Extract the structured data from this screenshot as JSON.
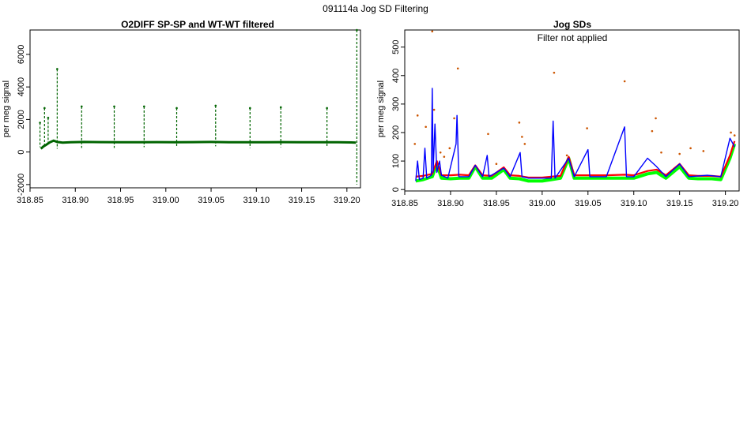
{
  "figure": {
    "main_title": "091114a   Jog SD Filtering"
  },
  "colors": {
    "left_series": "#006400",
    "right_blue": "#0000ff",
    "right_red": "#ff0000",
    "right_green": "#00ff00",
    "right_outliers": "#cc5500"
  },
  "chart_data": [
    {
      "type": "scatter",
      "title": "O2DIFF SP-SP and WT-WT filtered",
      "xlabel": "",
      "ylabel": "per meg signal",
      "xlim": [
        318.85,
        319.215
      ],
      "ylim": [
        -2200,
        7500
      ],
      "x_ticks": [
        "318.85",
        "318.90",
        "318.95",
        "319.00",
        "319.05",
        "319.10",
        "319.15",
        "319.20"
      ],
      "y_ticks": [
        "-2000",
        "0",
        "2000",
        "4000",
        "6000"
      ],
      "grid": false,
      "series": [
        {
          "baseline_points": [
            [
              318.862,
              200
            ],
            [
              318.865,
              350
            ],
            [
              318.868,
              450
            ],
            [
              318.872,
              600
            ],
            [
              318.876,
              700
            ],
            [
              318.88,
              620
            ],
            [
              318.886,
              580
            ],
            [
              318.895,
              600
            ],
            [
              318.91,
              620
            ],
            [
              318.93,
              610
            ],
            [
              318.95,
              600
            ],
            [
              318.97,
              605
            ],
            [
              318.99,
              610
            ],
            [
              319.01,
              605
            ],
            [
              319.03,
              610
            ],
            [
              319.05,
              620
            ],
            [
              319.07,
              605
            ],
            [
              319.09,
              600
            ],
            [
              319.11,
              605
            ],
            [
              319.13,
              610
            ],
            [
              319.15,
              600
            ],
            [
              319.17,
              605
            ],
            [
              319.19,
              600
            ],
            [
              319.205,
              590
            ],
            [
              319.21,
              580
            ]
          ],
          "spikes": [
            {
              "x": 318.861,
              "high": 1800,
              "low": 300
            },
            {
              "x": 318.866,
              "high": 2700,
              "low": 300
            },
            {
              "x": 318.87,
              "high": 2100,
              "low": 400
            },
            {
              "x": 318.88,
              "high": 5100,
              "low": 200
            },
            {
              "x": 318.907,
              "high": 2800,
              "low": 250
            },
            {
              "x": 318.943,
              "high": 2800,
              "low": 250
            },
            {
              "x": 318.976,
              "high": 2800,
              "low": 300
            },
            {
              "x": 319.012,
              "high": 2700,
              "low": 300
            },
            {
              "x": 319.055,
              "high": 2850,
              "low": 350
            },
            {
              "x": 319.093,
              "high": 2700,
              "low": 250
            },
            {
              "x": 319.127,
              "high": 2750,
              "low": 300
            },
            {
              "x": 319.178,
              "high": 2700,
              "low": 300
            },
            {
              "x": 319.211,
              "high": 7500,
              "low": -2000
            }
          ]
        }
      ]
    },
    {
      "type": "line",
      "title": "Jog SDs",
      "annotation": "Filter not applied",
      "xlabel": "",
      "ylabel": "per meg signal",
      "xlim": [
        318.85,
        319.215
      ],
      "ylim": [
        -5,
        560
      ],
      "x_ticks": [
        "318.85",
        "318.90",
        "318.95",
        "319.00",
        "319.05",
        "319.10",
        "319.15",
        "319.20"
      ],
      "y_ticks": [
        "0",
        "100",
        "200",
        "300",
        "400",
        "500"
      ],
      "grid": false,
      "series": [
        {
          "color_key": "right_green",
          "points": [
            [
              318.862,
              30
            ],
            [
              318.87,
              35
            ],
            [
              318.88,
              45
            ],
            [
              318.885,
              90
            ],
            [
              318.89,
              40
            ],
            [
              318.9,
              38
            ],
            [
              318.91,
              40
            ],
            [
              318.92,
              40
            ],
            [
              318.927,
              80
            ],
            [
              318.935,
              40
            ],
            [
              318.945,
              40
            ],
            [
              318.958,
              70
            ],
            [
              318.965,
              40
            ],
            [
              318.975,
              38
            ],
            [
              318.985,
              30
            ],
            [
              319.0,
              30
            ],
            [
              319.01,
              35
            ],
            [
              319.02,
              40
            ],
            [
              319.029,
              110
            ],
            [
              319.035,
              40
            ],
            [
              319.05,
              40
            ],
            [
              319.07,
              40
            ],
            [
              319.09,
              40
            ],
            [
              319.1,
              40
            ],
            [
              319.115,
              55
            ],
            [
              319.125,
              60
            ],
            [
              319.135,
              40
            ],
            [
              319.15,
              80
            ],
            [
              319.16,
              40
            ],
            [
              319.17,
              38
            ],
            [
              319.185,
              38
            ],
            [
              319.195,
              35
            ],
            [
              319.205,
              110
            ],
            [
              319.21,
              160
            ]
          ]
        },
        {
          "color_key": "right_red",
          "points": [
            [
              318.862,
              45
            ],
            [
              318.87,
              48
            ],
            [
              318.88,
              55
            ],
            [
              318.885,
              100
            ],
            [
              318.89,
              50
            ],
            [
              318.9,
              50
            ],
            [
              318.91,
              52
            ],
            [
              318.92,
              50
            ],
            [
              318.927,
              85
            ],
            [
              318.935,
              50
            ],
            [
              318.945,
              48
            ],
            [
              318.958,
              78
            ],
            [
              318.965,
              50
            ],
            [
              318.975,
              48
            ],
            [
              318.985,
              42
            ],
            [
              319.0,
              42
            ],
            [
              319.01,
              45
            ],
            [
              319.02,
              48
            ],
            [
              319.029,
              115
            ],
            [
              319.035,
              50
            ],
            [
              319.05,
              50
            ],
            [
              319.07,
              50
            ],
            [
              319.09,
              52
            ],
            [
              319.1,
              50
            ],
            [
              319.115,
              65
            ],
            [
              319.125,
              70
            ],
            [
              319.135,
              50
            ],
            [
              319.15,
              90
            ],
            [
              319.16,
              50
            ],
            [
              319.17,
              48
            ],
            [
              319.185,
              48
            ],
            [
              319.195,
              45
            ],
            [
              319.205,
              120
            ],
            [
              319.21,
              170
            ]
          ]
        },
        {
          "color_key": "right_blue",
          "points": [
            [
              318.862,
              30
            ],
            [
              318.864,
              100
            ],
            [
              318.866,
              35
            ],
            [
              318.87,
              40
            ],
            [
              318.872,
              145
            ],
            [
              318.874,
              40
            ],
            [
              318.879,
              50
            ],
            [
              318.88,
              355
            ],
            [
              318.881,
              60
            ],
            [
              318.883,
              230
            ],
            [
              318.885,
              60
            ],
            [
              318.888,
              100
            ],
            [
              318.89,
              50
            ],
            [
              318.897,
              40
            ],
            [
              318.906,
              160
            ],
            [
              318.907,
              260
            ],
            [
              318.909,
              45
            ],
            [
              318.92,
              45
            ],
            [
              318.927,
              85
            ],
            [
              318.935,
              45
            ],
            [
              318.94,
              120
            ],
            [
              318.942,
              45
            ],
            [
              318.958,
              75
            ],
            [
              318.965,
              45
            ],
            [
              318.976,
              130
            ],
            [
              318.978,
              45
            ],
            [
              318.985,
              40
            ],
            [
              319.0,
              40
            ],
            [
              319.01,
              40
            ],
            [
              319.012,
              240
            ],
            [
              319.014,
              40
            ],
            [
              319.029,
              110
            ],
            [
              319.035,
              45
            ],
            [
              319.05,
              140
            ],
            [
              319.052,
              45
            ],
            [
              319.07,
              45
            ],
            [
              319.09,
              220
            ],
            [
              319.092,
              45
            ],
            [
              319.1,
              45
            ],
            [
              319.115,
              110
            ],
            [
              319.125,
              80
            ],
            [
              319.135,
              45
            ],
            [
              319.15,
              90
            ],
            [
              319.16,
              45
            ],
            [
              319.18,
              50
            ],
            [
              319.195,
              45
            ],
            [
              319.205,
              180
            ],
            [
              319.21,
              150
            ]
          ]
        }
      ],
      "outliers": [
        [
          318.861,
          160
        ],
        [
          318.864,
          260
        ],
        [
          318.873,
          220
        ],
        [
          318.88,
          555
        ],
        [
          318.882,
          280
        ],
        [
          318.889,
          130
        ],
        [
          318.893,
          115
        ],
        [
          318.899,
          145
        ],
        [
          318.904,
          250
        ],
        [
          318.908,
          425
        ],
        [
          318.941,
          195
        ],
        [
          318.95,
          90
        ],
        [
          318.975,
          235
        ],
        [
          318.978,
          185
        ],
        [
          318.981,
          160
        ],
        [
          319.013,
          410
        ],
        [
          319.027,
          120
        ],
        [
          319.049,
          215
        ],
        [
          319.09,
          380
        ],
        [
          319.12,
          205
        ],
        [
          319.124,
          250
        ],
        [
          319.13,
          130
        ],
        [
          319.15,
          125
        ],
        [
          319.162,
          145
        ],
        [
          319.176,
          135
        ],
        [
          319.206,
          200
        ],
        [
          319.21,
          190
        ]
      ]
    }
  ]
}
